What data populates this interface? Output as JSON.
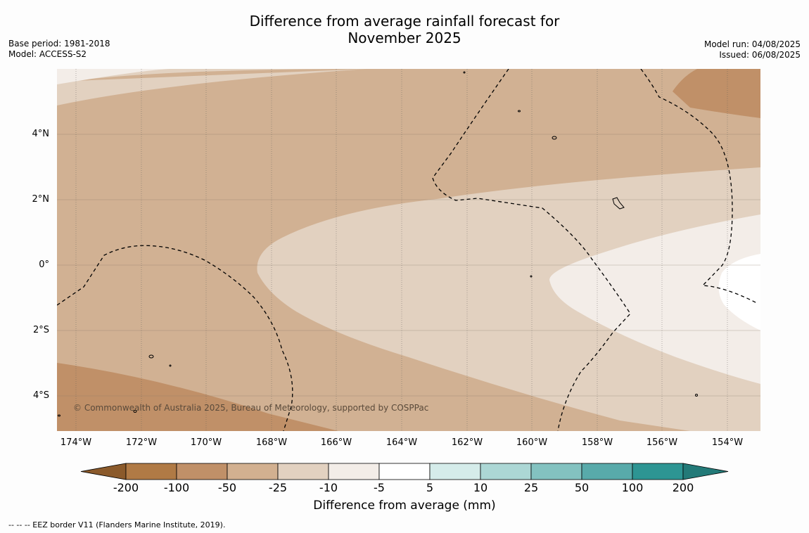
{
  "title_line1": "Difference from average rainfall forecast for",
  "title_line2": "November 2025",
  "base_period": "Base period: 1981-2018",
  "model": "Model: ACCESS-S2",
  "model_run": "Model run: 04/08/2025",
  "issued": "Issued: 06/08/2025",
  "copyright": "© Commonwealth of Australia 2025, Bureau of Meteorology, supported by COSPPac",
  "y_ticks": [
    "4°N",
    "2°N",
    "0°",
    "2°S",
    "4°S"
  ],
  "x_ticks": [
    "174°W",
    "172°W",
    "170°W",
    "168°W",
    "166°W",
    "164°W",
    "162°W",
    "160°W",
    "158°W",
    "156°W",
    "154°W"
  ],
  "colorbar": {
    "title": "Difference from average (mm)",
    "labels": [
      "-200",
      "-100",
      "-50",
      "-25",
      "-10",
      "-5",
      "5",
      "10",
      "25",
      "50",
      "100",
      "200"
    ],
    "colors": [
      "#8b5a2b",
      "#b07a45",
      "#c09068",
      "#d2b090",
      "#e2d1c0",
      "#f3ede8",
      "#ffffff",
      "#d5ecea",
      "#acd7d5",
      "#83c2c0",
      "#58aaaa",
      "#2d9593",
      "#237a78"
    ]
  },
  "footnote": "--  --  -- EEZ border V11 (Flanders Marine Institute, 2019)."
}
